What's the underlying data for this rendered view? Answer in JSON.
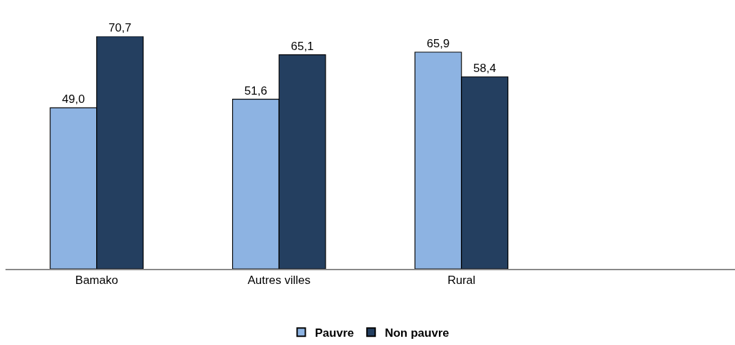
{
  "chart_data": {
    "type": "bar",
    "categories": [
      "Bamako",
      "Autres villes",
      "Rural",
      null
    ],
    "series": [
      {
        "name": "Pauvre",
        "color": "#8db3e2",
        "values": [
          49.0,
          51.6,
          65.9,
          null
        ],
        "value_labels": [
          "49,0",
          "51,6",
          "65,9",
          null
        ]
      },
      {
        "name": "Non pauvre",
        "color": "#243f60",
        "values": [
          70.7,
          65.1,
          58.4,
          null
        ],
        "value_labels": [
          "70,7",
          "65,1",
          "58,4",
          null
        ]
      }
    ],
    "legend": "bottom"
  }
}
